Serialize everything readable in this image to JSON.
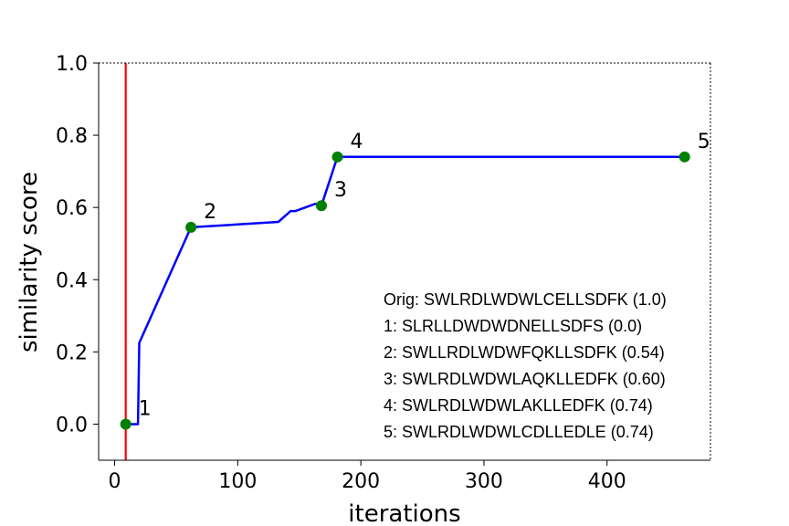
{
  "chart_data": {
    "type": "line",
    "xlabel": "iterations",
    "ylabel": "similarity score",
    "xlim": [
      -13,
      484
    ],
    "ylim": [
      -0.1,
      1.0
    ],
    "xticks": [
      0,
      100,
      200,
      300,
      400
    ],
    "yticks": [
      0.0,
      0.2,
      0.4,
      0.6,
      0.8,
      1.0
    ],
    "xtick_labels": [
      "0",
      "100",
      "200",
      "300",
      "400"
    ],
    "ytick_labels": [
      "0.0",
      "0.2",
      "0.4",
      "0.6",
      "0.8",
      "1.0"
    ],
    "grid": false,
    "vline": {
      "x": 9,
      "color": "#ff0000"
    },
    "series": [
      {
        "color": "#0000ff",
        "x": [
          9,
          13,
          19,
          20,
          62,
          133,
          143,
          147,
          163,
          168,
          181,
          463
        ],
        "y": [
          0.0,
          0.0,
          0.0,
          0.225,
          0.545,
          0.56,
          0.59,
          0.59,
          0.61,
          0.605,
          0.74,
          0.74
        ]
      }
    ],
    "highlight_points": {
      "color": "#008000",
      "points": [
        {
          "label": "1",
          "x": 9,
          "y": 0.0
        },
        {
          "label": "2",
          "x": 62,
          "y": 0.545
        },
        {
          "label": "3",
          "x": 168,
          "y": 0.605
        },
        {
          "label": "4",
          "x": 181,
          "y": 0.74
        },
        {
          "label": "5",
          "x": 463,
          "y": 0.74
        }
      ]
    },
    "annotation_lines": [
      "Orig: SWLRDLWDWLCELLSDFK (1.0)",
      "1: SLRLLDWDWDNELLSDFS (0.0)",
      "2: SWLLRDLWDWFQKLLSDFK (0.54)",
      "3: SWLRDLWDWLAQKLLEDFK (0.60)",
      "4: SWLRDLWDWLAKLLEDFK (0.74)",
      "5: SWLRDLWDWLCDLLEDLE (0.74)"
    ]
  }
}
